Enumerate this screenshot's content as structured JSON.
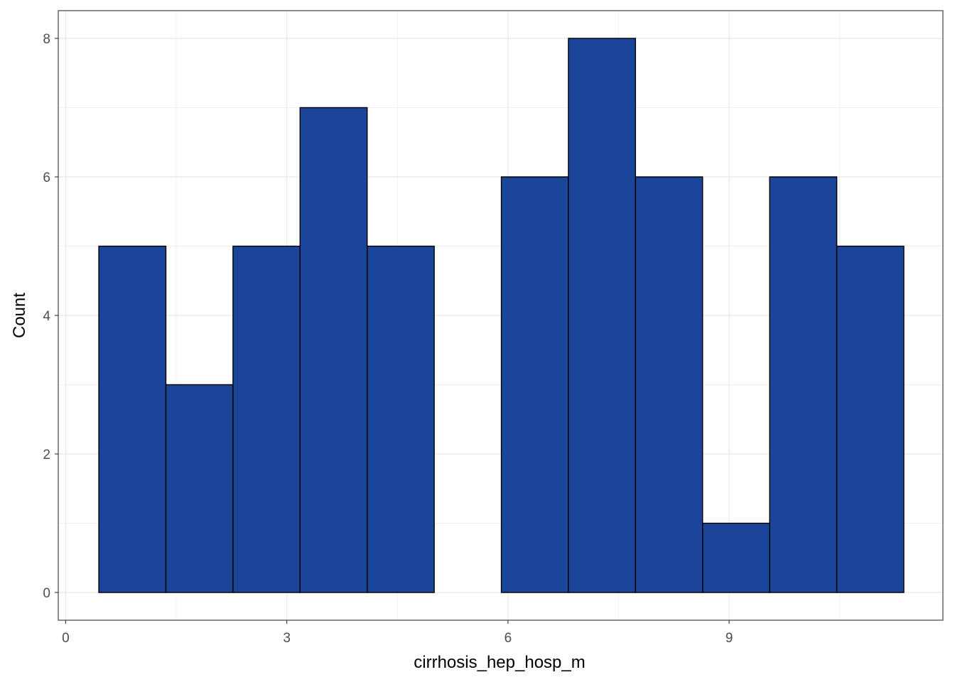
{
  "chart_data": {
    "type": "bar",
    "variant": "histogram",
    "xlabel": "cirrhosis_hep_hosp_m",
    "ylabel": "Count",
    "xlim": [
      -0.1,
      11.9
    ],
    "ylim": [
      -0.4,
      8.4
    ],
    "x_ticks": [
      0,
      3,
      6,
      9
    ],
    "y_ticks": [
      0,
      2,
      4,
      6,
      8
    ],
    "bins": [
      {
        "x0": 0.45,
        "x1": 1.36,
        "count": 5
      },
      {
        "x0": 1.36,
        "x1": 2.27,
        "count": 3
      },
      {
        "x0": 2.27,
        "x1": 3.18,
        "count": 5
      },
      {
        "x0": 3.18,
        "x1": 4.09,
        "count": 7
      },
      {
        "x0": 4.09,
        "x1": 5.0,
        "count": 5
      },
      {
        "x0": 5.0,
        "x1": 5.91,
        "count": 0
      },
      {
        "x0": 5.91,
        "x1": 6.82,
        "count": 6
      },
      {
        "x0": 6.82,
        "x1": 7.73,
        "count": 8
      },
      {
        "x0": 7.73,
        "x1": 8.64,
        "count": 6
      },
      {
        "x0": 8.64,
        "x1": 9.55,
        "count": 1
      },
      {
        "x0": 9.55,
        "x1": 10.46,
        "count": 6
      },
      {
        "x0": 10.46,
        "x1": 11.37,
        "count": 5
      }
    ],
    "grid": true,
    "fill_color": "#1a4599",
    "outline_color": "#000000",
    "grid_color": "#ebebeb",
    "panel_border_color": "#333333"
  }
}
